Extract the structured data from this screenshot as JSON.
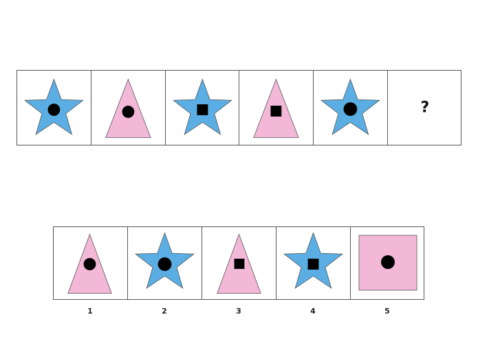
{
  "colors": {
    "star_fill": "#5aaee3",
    "triangle_fill": "#f3b8d7",
    "square_fill": "#f3b8d7",
    "inner_mark": "#000000",
    "outline": "#555555"
  },
  "sequence": [
    {
      "shape": "star",
      "mark": "circle"
    },
    {
      "shape": "triangle",
      "mark": "circle"
    },
    {
      "shape": "star",
      "mark": "square"
    },
    {
      "shape": "triangle",
      "mark": "square"
    },
    {
      "shape": "star",
      "mark": "circle"
    },
    {
      "shape": "unknown",
      "label": "?"
    }
  ],
  "options": [
    {
      "label": "1",
      "shape": "triangle",
      "mark": "circle"
    },
    {
      "label": "2",
      "shape": "star",
      "mark": "circle"
    },
    {
      "label": "3",
      "shape": "triangle",
      "mark": "square"
    },
    {
      "label": "4",
      "shape": "star",
      "mark": "square"
    },
    {
      "label": "5",
      "shape": "square",
      "mark": "circle"
    }
  ]
}
